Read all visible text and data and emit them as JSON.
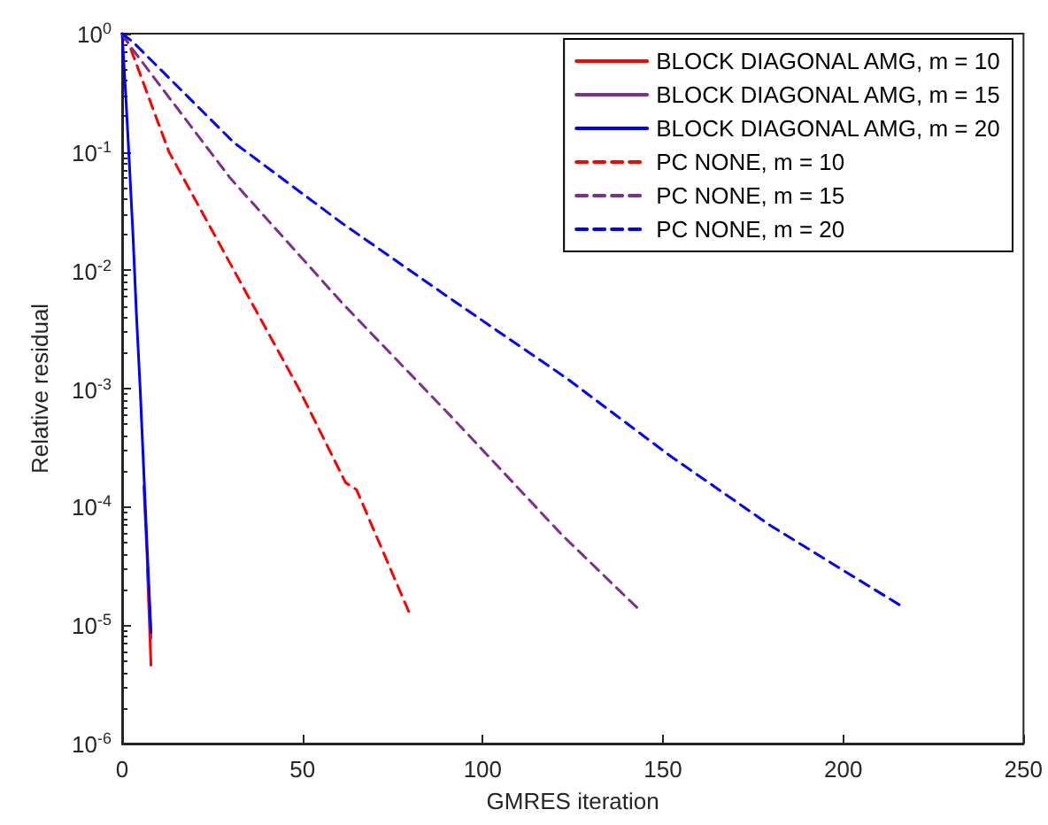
{
  "chart_data": {
    "type": "line",
    "xlabel": "GMRES iteration",
    "ylabel": "Relative residual",
    "log": "y",
    "xlim": [
      0,
      250
    ],
    "xticks": [
      0,
      50,
      100,
      150,
      200,
      250
    ],
    "ylim": [
      1e-06,
      1
    ],
    "yticks": [
      {
        "value": 1e-06,
        "label": "10$^{-6}$"
      },
      {
        "value": 1e-05,
        "label": "10$^{-5}$"
      },
      {
        "value": 0.0001,
        "label": "10$^{-4}$"
      },
      {
        "value": 0.001,
        "label": "10$^{-3}$"
      },
      {
        "value": 0.01,
        "label": "10$^{-2}$"
      },
      {
        "value": 0.1,
        "label": "10$^{-1}$"
      },
      {
        "value": 1,
        "label": "10$^{0}$"
      }
    ],
    "grid": false,
    "legend": "top right",
    "marker": "none",
    "series": [
      {
        "name": "BLOCK DIAGONAL AMG, m = 10",
        "color": "#ff0000",
        "line_style": "solid",
        "x": [
          7,
          8
        ],
        "values": [
          3e-05,
          4.6e-06
        ]
      },
      {
        "name": "BLOCK DIAGONAL AMG, m = 15",
        "color": "#7e2f8e",
        "line_style": "solid",
        "x": [
          6,
          8
        ],
        "values": [
          0.00015,
          7.8e-06
        ]
      },
      {
        "name": "BLOCK DIAGONAL AMG, m = 20",
        "color": "#0000ff",
        "line_style": "solid",
        "x": [
          0,
          1,
          2,
          3,
          4,
          5,
          6,
          7,
          8
        ],
        "values": [
          1,
          0.3,
          0.08,
          0.02,
          0.004,
          0.001,
          0.0002,
          4e-05,
          8.7e-06
        ]
      },
      {
        "name": "PC NONE, m = 10",
        "color": "#ff0000",
        "line_style": "dashed",
        "x": [
          0,
          2,
          13,
          31,
          49,
          62,
          65,
          80
        ],
        "values": [
          1,
          0.8,
          0.1,
          0.01,
          0.001,
          0.00016,
          0.00014,
          1.2e-05
        ]
      },
      {
        "name": "PC NONE, m = 15",
        "color": "#7e2f8e",
        "line_style": "dashed",
        "x": [
          0,
          2,
          30,
          61,
          92,
          122,
          144
        ],
        "values": [
          1,
          0.8,
          0.06,
          0.0053,
          0.00055,
          5.8e-05,
          1.3e-05
        ]
      },
      {
        "name": "PC NONE, m = 20",
        "color": "#0000ff",
        "line_style": "dashed",
        "x": [
          0,
          3,
          31,
          61,
          92,
          123,
          152,
          180,
          217
        ],
        "values": [
          1,
          0.85,
          0.12,
          0.025,
          0.0055,
          0.00124,
          0.00027,
          6.9e-05,
          1.4e-05
        ]
      }
    ]
  }
}
